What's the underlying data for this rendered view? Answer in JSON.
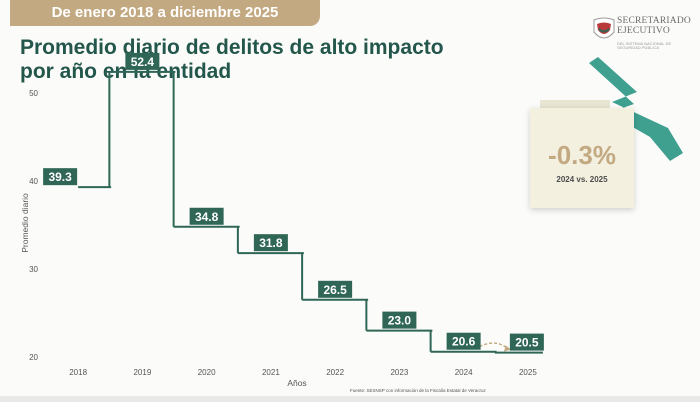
{
  "banner": {
    "period": "De enero 2018 a diciembre 2025"
  },
  "header": {
    "title_line1": "Promedio diario de delitos de alto impacto",
    "title_line2": "por año en la entidad"
  },
  "logo": {
    "line1": "SECRETARIADO",
    "line2": "EJECUTIVO",
    "subtitle": "DEL SISTEMA NACIONAL DE SEGURIDAD PÚBLICA"
  },
  "callout": {
    "value": "-0.3%",
    "label": "2024 vs. 2025"
  },
  "colors": {
    "primary": "#2f6656",
    "gold": "#c3a981",
    "teal": "#3fa090"
  },
  "chart_data": {
    "type": "line",
    "subtype": "step",
    "title": "Promedio diario de delitos de alto impacto por año en la entidad",
    "xlabel": "Años",
    "ylabel": "Promedio diario",
    "categories": [
      "2018",
      "2019",
      "2020",
      "2021",
      "2022",
      "2023",
      "2024",
      "2025"
    ],
    "values": [
      39.3,
      52.4,
      34.8,
      31.8,
      26.5,
      23.0,
      20.6,
      20.5
    ],
    "value_labels": [
      "39.3",
      "52.4",
      "34.8",
      "31.8",
      "26.5",
      "23.0",
      "20.6",
      "20.5"
    ],
    "yticks": [
      20,
      30,
      40,
      50
    ],
    "ylim": [
      20,
      55
    ],
    "grid": false,
    "source": "Fuente: SESNSP con información de la Fiscalía Estatal de Veracruz"
  }
}
